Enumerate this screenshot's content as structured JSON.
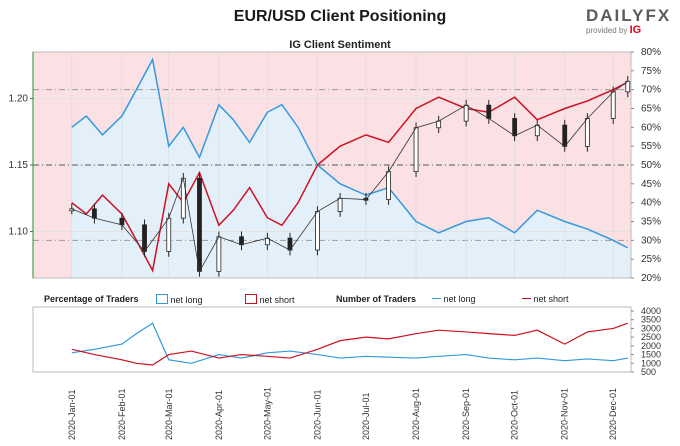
{
  "header": {
    "title": "EUR/USD Client Positioning",
    "subtitle": "IG Client Sentiment",
    "brand_name": "DAILYFX",
    "brand_tagline": "provided by",
    "brand_partner": "IG"
  },
  "legend": {
    "pct_header": "Percentage of Traders",
    "pct_long": "net long",
    "pct_short": "net short",
    "num_header": "Number of Traders",
    "num_long": "net long",
    "num_short": "net short"
  },
  "colors": {
    "long": "#3399dd",
    "short": "#cc1122",
    "long_fill": "#e3f0fa",
    "short_fill": "#fbe1e3",
    "price_up": "#ffffff",
    "price_down": "#222222",
    "axis_green": "#2e8b2e"
  },
  "chart_data": [
    {
      "type": "line",
      "title": "IG Client Sentiment",
      "x_ticks": [
        "2020-Jan-01",
        "2020-Feb-01",
        "2020-Mar-01",
        "2020-Apr-01",
        "2020-May-01",
        "2020-Jun-01",
        "2020-Jul-01",
        "2020-Aug-01",
        "2020-Sep-01",
        "2020-Oct-01",
        "2020-Nov-01",
        "2020-Dec-01"
      ],
      "price_axis": {
        "ticks": [
          "1.10",
          "1.15",
          "1.20"
        ],
        "ylim": [
          1.065,
          1.235
        ]
      },
      "pct_axis": {
        "ticks": [
          "20%",
          "25%",
          "30%",
          "35%",
          "40%",
          "45%",
          "50%",
          "55%",
          "60%",
          "65%",
          "70%",
          "75%",
          "80%"
        ],
        "ylim": [
          20,
          80
        ]
      },
      "series": [
        {
          "name": "net long",
          "x": [
            "2020-01-01",
            "2020-01-10",
            "2020-01-20",
            "2020-02-01",
            "2020-02-10",
            "2020-02-20",
            "2020-03-01",
            "2020-03-10",
            "2020-03-20",
            "2020-04-01",
            "2020-04-10",
            "2020-04-20",
            "2020-05-01",
            "2020-05-10",
            "2020-05-20",
            "2020-06-01",
            "2020-06-15",
            "2020-07-01",
            "2020-07-15",
            "2020-08-01",
            "2020-08-15",
            "2020-09-01",
            "2020-09-15",
            "2020-10-01",
            "2020-10-15",
            "2020-11-01",
            "2020-11-15",
            "2020-12-01",
            "2020-12-10"
          ],
          "values": [
            60,
            63,
            58,
            63,
            70,
            78,
            55,
            60,
            52,
            66,
            62,
            56,
            64,
            66,
            60,
            50,
            45,
            42,
            44,
            35,
            32,
            35,
            36,
            32,
            38,
            35,
            33,
            30,
            28
          ]
        },
        {
          "name": "net short",
          "x": [
            "2020-01-01",
            "2020-01-10",
            "2020-01-20",
            "2020-02-01",
            "2020-02-10",
            "2020-02-20",
            "2020-03-01",
            "2020-03-10",
            "2020-03-20",
            "2020-04-01",
            "2020-04-10",
            "2020-04-20",
            "2020-05-01",
            "2020-05-10",
            "2020-05-20",
            "2020-06-01",
            "2020-06-15",
            "2020-07-01",
            "2020-07-15",
            "2020-08-01",
            "2020-08-15",
            "2020-09-01",
            "2020-09-15",
            "2020-10-01",
            "2020-10-15",
            "2020-11-01",
            "2020-11-15",
            "2020-12-01",
            "2020-12-10"
          ],
          "values": [
            40,
            37,
            42,
            37,
            30,
            22,
            45,
            40,
            48,
            34,
            38,
            44,
            36,
            34,
            40,
            50,
            55,
            58,
            56,
            65,
            68,
            65,
            64,
            68,
            62,
            65,
            67,
            70,
            72
          ]
        },
        {
          "name": "EUR/USD",
          "x": [
            "2020-01-01",
            "2020-01-15",
            "2020-02-01",
            "2020-02-15",
            "2020-03-01",
            "2020-03-10",
            "2020-03-20",
            "2020-04-01",
            "2020-04-15",
            "2020-05-01",
            "2020-05-15",
            "2020-06-01",
            "2020-06-15",
            "2020-07-01",
            "2020-07-15",
            "2020-08-01",
            "2020-08-15",
            "2020-09-01",
            "2020-09-15",
            "2020-10-01",
            "2020-10-15",
            "2020-11-01",
            "2020-11-15",
            "2020-12-01",
            "2020-12-10"
          ],
          "values": [
            1.117,
            1.11,
            1.105,
            1.085,
            1.11,
            1.14,
            1.07,
            1.096,
            1.09,
            1.095,
            1.086,
            1.115,
            1.125,
            1.124,
            1.145,
            1.178,
            1.183,
            1.195,
            1.185,
            1.172,
            1.18,
            1.164,
            1.185,
            1.205,
            1.213
          ]
        }
      ]
    },
    {
      "type": "line",
      "title": "Number of Traders",
      "y_ticks": [
        "500",
        "1000",
        "1500",
        "2000",
        "2500",
        "3000",
        "3500",
        "4000"
      ],
      "ylim": [
        500,
        4000
      ],
      "series": [
        {
          "name": "net long",
          "x": [
            "2020-01-01",
            "2020-01-15",
            "2020-02-01",
            "2020-02-10",
            "2020-02-20",
            "2020-03-01",
            "2020-03-15",
            "2020-04-01",
            "2020-04-15",
            "2020-05-01",
            "2020-05-15",
            "2020-06-01",
            "2020-06-15",
            "2020-07-01",
            "2020-07-15",
            "2020-08-01",
            "2020-08-15",
            "2020-09-01",
            "2020-09-15",
            "2020-10-01",
            "2020-10-15",
            "2020-11-01",
            "2020-11-15",
            "2020-12-01",
            "2020-12-10"
          ],
          "values": [
            1600,
            1800,
            2100,
            2700,
            3300,
            1200,
            1000,
            1500,
            1300,
            1600,
            1700,
            1500,
            1300,
            1400,
            1350,
            1300,
            1400,
            1500,
            1300,
            1200,
            1300,
            1150,
            1250,
            1150,
            1300
          ]
        },
        {
          "name": "net short",
          "x": [
            "2020-01-01",
            "2020-01-15",
            "2020-02-01",
            "2020-02-10",
            "2020-02-20",
            "2020-03-01",
            "2020-03-15",
            "2020-04-01",
            "2020-04-15",
            "2020-05-01",
            "2020-05-15",
            "2020-06-01",
            "2020-06-15",
            "2020-07-01",
            "2020-07-15",
            "2020-08-01",
            "2020-08-15",
            "2020-09-01",
            "2020-09-15",
            "2020-10-01",
            "2020-10-15",
            "2020-11-01",
            "2020-11-15",
            "2020-12-01",
            "2020-12-10"
          ],
          "values": [
            1800,
            1500,
            1200,
            1000,
            900,
            1500,
            1700,
            1300,
            1500,
            1400,
            1300,
            1800,
            2300,
            2500,
            2400,
            2700,
            2900,
            2800,
            2700,
            2600,
            2900,
            2100,
            2800,
            3000,
            3300
          ]
        }
      ]
    }
  ]
}
